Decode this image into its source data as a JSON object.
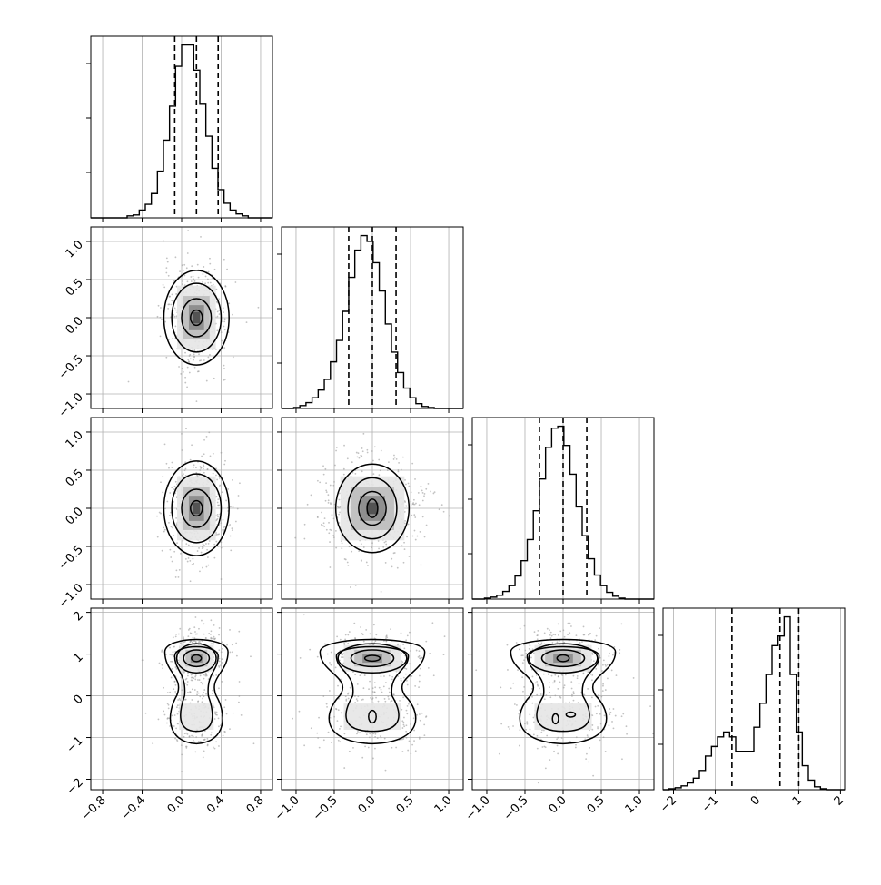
{
  "chart_data": {
    "type": "corner",
    "parameters": [
      {
        "index": 0,
        "range": [
          -0.92,
          0.92
        ]
      },
      {
        "index": 1,
        "range": [
          -1.19,
          1.19
        ]
      },
      {
        "index": 2,
        "range": [
          -1.19,
          1.19
        ]
      },
      {
        "index": 3,
        "range": [
          -2.25,
          2.1
        ]
      }
    ],
    "axis_ticks": {
      "x": [
        [
          "-0.8",
          "-0.4",
          "0.0",
          "0.4",
          "0.8"
        ],
        [
          "-1.0",
          "-0.5",
          "0.0",
          "0.5",
          "1.0"
        ],
        [
          "-1.0",
          "-0.5",
          "0.0",
          "0.5",
          "1.0"
        ],
        [
          "-2",
          "-1",
          "0",
          "1",
          "2"
        ]
      ],
      "y": [
        [],
        [
          "-1.0",
          "-0.5",
          "0.0",
          "0.5",
          "1.0"
        ],
        [
          "-1.0",
          "-0.5",
          "0.0",
          "0.5",
          "1.0"
        ],
        [
          "-2",
          "-1",
          "0",
          "1",
          "2"
        ]
      ]
    },
    "grid": true,
    "histograms": [
      {
        "param": 0,
        "bin_edges": [
          -0.92,
          -0.8587,
          -0.7973,
          -0.736,
          -0.6747,
          -0.6133,
          -0.552,
          -0.4907,
          -0.4293,
          -0.368,
          -0.3067,
          -0.2453,
          -0.184,
          -0.1227,
          -0.0613,
          0.0,
          0.0613,
          0.1227,
          0.184,
          0.2453,
          0.3067,
          0.368,
          0.4293,
          0.4907,
          0.552,
          0.6133,
          0.6747,
          0.736,
          0.7973,
          0.8587,
          0.92
        ],
        "counts": [
          0,
          0,
          0,
          0,
          0,
          0,
          2,
          3,
          8,
          14,
          25,
          48,
          80,
          115,
          156,
          178,
          178,
          152,
          117,
          84,
          51,
          29,
          15,
          8,
          4,
          2,
          0,
          0,
          0,
          0
        ],
        "quantiles": [
          -0.07,
          0.15,
          0.37
        ]
      },
      {
        "param": 1,
        "bin_edges": [
          -1.19,
          -1.11,
          -1.03,
          -0.95,
          -0.87,
          -0.79,
          -0.71,
          -0.63,
          -0.55,
          -0.47,
          -0.39,
          -0.31,
          -0.23,
          -0.15,
          -0.07,
          0.01,
          0.09,
          0.17,
          0.25,
          0.33,
          0.41,
          0.49,
          0.57,
          0.65,
          0.73,
          0.81,
          0.89,
          0.97,
          1.05,
          1.13,
          1.19
        ],
        "counts": [
          0,
          0,
          1,
          3,
          6,
          11,
          19,
          30,
          48,
          70,
          100,
          135,
          163,
          178,
          172,
          150,
          121,
          87,
          58,
          37,
          21,
          11,
          5,
          2,
          1,
          0,
          0,
          0,
          0,
          0
        ],
        "quantiles": [
          -0.31,
          0.0,
          0.31
        ]
      },
      {
        "param": 2,
        "bin_edges": [
          -1.19,
          -1.11,
          -1.03,
          -0.95,
          -0.87,
          -0.79,
          -0.71,
          -0.63,
          -0.55,
          -0.47,
          -0.39,
          -0.31,
          -0.23,
          -0.15,
          -0.07,
          0.01,
          0.09,
          0.17,
          0.25,
          0.33,
          0.41,
          0.49,
          0.57,
          0.65,
          0.73,
          0.81,
          0.89,
          0.97,
          1.05,
          1.13,
          1.19
        ],
        "counts": [
          0,
          0,
          1,
          2,
          4,
          8,
          14,
          24,
          40,
          62,
          92,
          125,
          158,
          178,
          180,
          160,
          130,
          96,
          66,
          42,
          25,
          14,
          7,
          3,
          1,
          0,
          0,
          0,
          0,
          0
        ],
        "quantiles": [
          -0.31,
          0.0,
          0.31
        ]
      },
      {
        "param": 3,
        "bin_edges": [
          -2.25,
          -2.105,
          -1.96,
          -1.815,
          -1.67,
          -1.525,
          -1.38,
          -1.235,
          -1.09,
          -0.945,
          -0.8,
          -0.655,
          -0.51,
          -0.365,
          -0.22,
          -0.075,
          0.07,
          0.215,
          0.36,
          0.505,
          0.65,
          0.795,
          0.94,
          1.085,
          1.23,
          1.375,
          1.52,
          1.665,
          1.81,
          1.955,
          2.1
        ],
        "counts": [
          0,
          1,
          2,
          4,
          7,
          12,
          20,
          35,
          45,
          55,
          60,
          55,
          40,
          40,
          40,
          65,
          90,
          120,
          150,
          160,
          180,
          120,
          60,
          25,
          10,
          3,
          1,
          0,
          0,
          0
        ],
        "quantiles": [
          -0.6,
          0.55,
          1.0
        ]
      }
    ],
    "pairs": [
      {
        "x": 0,
        "y": 1,
        "center": [
          0.15,
          0.0
        ],
        "sigma": [
          0.14,
          0.3
        ],
        "contours": [
          [
            0.06,
            0.1
          ],
          [
            0.15,
            0.25
          ],
          [
            0.25,
            0.45
          ],
          [
            0.33,
            0.62
          ]
        ],
        "extra": []
      },
      {
        "x": 0,
        "y": 2,
        "center": [
          0.15,
          0.0
        ],
        "sigma": [
          0.14,
          0.3
        ],
        "contours": [
          [
            0.06,
            0.1
          ],
          [
            0.15,
            0.25
          ],
          [
            0.25,
            0.45
          ],
          [
            0.33,
            0.62
          ]
        ],
        "extra": []
      },
      {
        "x": 1,
        "y": 2,
        "center": [
          0.0,
          0.0
        ],
        "sigma": [
          0.3,
          0.3
        ],
        "contours": [
          [
            0.07,
            0.12
          ],
          [
            0.18,
            0.22
          ],
          [
            0.32,
            0.4
          ],
          [
            0.48,
            0.58
          ]
        ],
        "extra": []
      },
      {
        "x": 0,
        "y": 3,
        "center": [
          0.15,
          0.0
        ],
        "sigma": [
          0.14,
          0.55
        ],
        "contours": [],
        "extra": [
          [
            0.15,
            0.9,
            0.05,
            0.08
          ],
          [
            0.15,
            0.9,
            0.13,
            0.2
          ],
          [
            0.15,
            0.9,
            0.2,
            0.35
          ]
        ],
        "bimodal": true
      },
      {
        "x": 1,
        "y": 3,
        "center": [
          0.0,
          0.0
        ],
        "sigma": [
          0.3,
          0.55
        ],
        "contours": [],
        "extra": [
          [
            0.0,
            0.9,
            0.1,
            0.07
          ],
          [
            0.0,
            0.9,
            0.28,
            0.2
          ],
          [
            0.0,
            0.9,
            0.45,
            0.35
          ],
          [
            0.0,
            -0.5,
            0.05,
            0.15
          ]
        ],
        "bimodal": true
      },
      {
        "x": 2,
        "y": 3,
        "center": [
          0.0,
          0.0
        ],
        "sigma": [
          0.3,
          0.55
        ],
        "contours": [],
        "extra": [
          [
            0.0,
            0.9,
            0.08,
            0.08
          ],
          [
            0.0,
            0.9,
            0.28,
            0.2
          ],
          [
            0.0,
            0.9,
            0.45,
            0.35
          ],
          [
            -0.1,
            -0.55,
            0.04,
            0.12
          ],
          [
            0.1,
            -0.45,
            0.06,
            0.06
          ]
        ],
        "bimodal": true
      }
    ]
  }
}
